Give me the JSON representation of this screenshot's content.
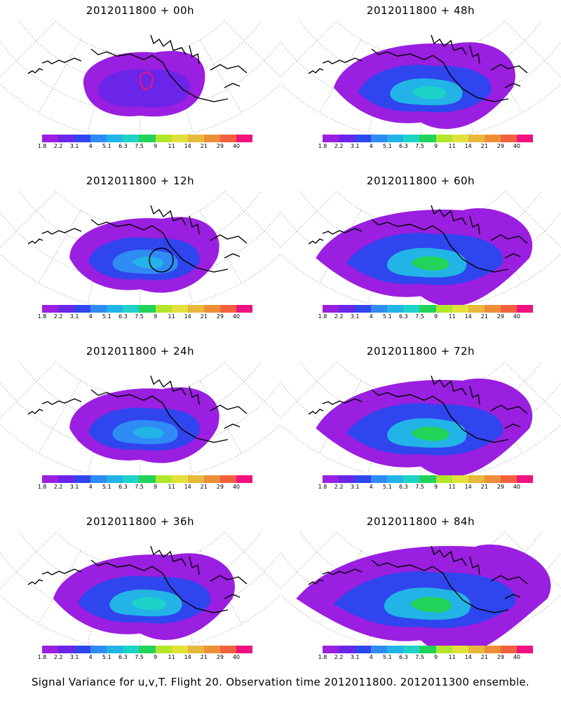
{
  "panels": [
    {
      "title": "2012011800 + 00h",
      "intensity": 0
    },
    {
      "title": "2012011800 + 48h",
      "intensity": 2
    },
    {
      "title": "2012011800 + 12h",
      "intensity": 1
    },
    {
      "title": "2012011800 + 60h",
      "intensity": 3
    },
    {
      "title": "2012011800 + 24h",
      "intensity": 1
    },
    {
      "title": "2012011800 + 72h",
      "intensity": 3
    },
    {
      "title": "2012011800 + 36h",
      "intensity": 2
    },
    {
      "title": "2012011800 + 84h",
      "intensity": 4
    }
  ],
  "colorbar": {
    "labels": [
      "1.8",
      "2.2",
      "3.1",
      "4",
      "5.1",
      "6.3",
      "7.5",
      "9",
      "11",
      "14",
      "21",
      "29",
      "40"
    ],
    "colors": [
      "#9a1fe0",
      "#6a25e8",
      "#2f45ee",
      "#2f8cf4",
      "#22b4e6",
      "#1ed2c8",
      "#22d35a",
      "#b2e62a",
      "#e2e03a",
      "#e7b83a",
      "#ee8f38",
      "#f2603e",
      "#f0127f"
    ]
  },
  "caption": "Signal Variance for u,v,T. Flight 20. Observation time 2012011800. 2012011300 ensemble."
}
